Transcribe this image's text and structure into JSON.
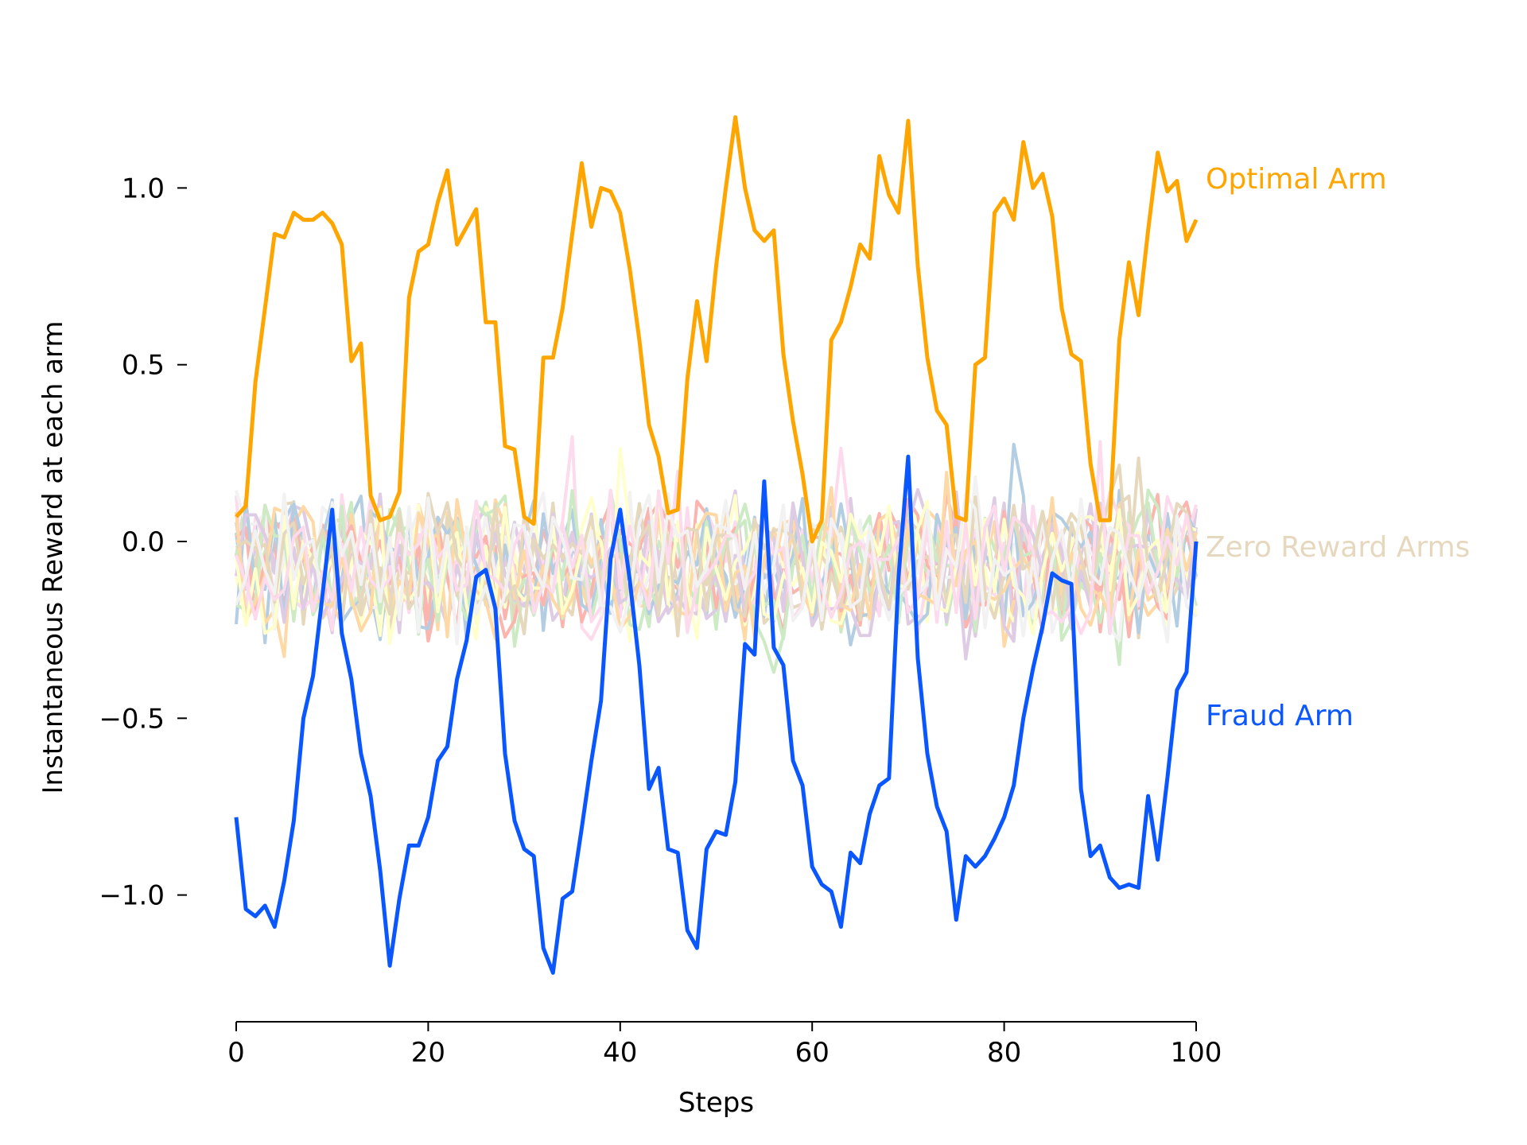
{
  "chart_data": {
    "type": "line",
    "title": "",
    "xlabel": "Steps",
    "ylabel": "Instantaneous Reward at each arm",
    "xlim": [
      0,
      100
    ],
    "ylim": [
      -1.3,
      1.3
    ],
    "x_ticks": [
      0,
      20,
      40,
      60,
      80,
      100
    ],
    "x_tick_labels": [
      "0",
      "20",
      "40",
      "60",
      "80",
      "100"
    ],
    "y_ticks": [
      -1.0,
      -0.5,
      0.0,
      0.5,
      1.0
    ],
    "y_tick_labels": [
      "−1.0",
      "−0.5",
      "0.0",
      "0.5",
      "1.0"
    ],
    "grid": false,
    "legend": "labels placed at the right end of the lines",
    "series_labels": {
      "optimal": "Optimal Arm",
      "zero": "Zero Reward Arms",
      "fraud": "Fraud Arm"
    },
    "colors": {
      "optimal": "#FFA500",
      "fraud": "#0B57FF",
      "zero_label": "#E6D8BE",
      "zero_palette": [
        "#FBB4AE",
        "#B3CDE3",
        "#CCEBC5",
        "#DECBE4",
        "#FED9A6",
        "#FFFFCC",
        "#E5D8BD",
        "#FDDAEC",
        "#F2F2F2"
      ]
    },
    "x": [
      0,
      1,
      2,
      3,
      4,
      5,
      6,
      7,
      8,
      9,
      10,
      11,
      12,
      13,
      14,
      15,
      16,
      17,
      18,
      19,
      20,
      21,
      22,
      23,
      24,
      25,
      26,
      27,
      28,
      29,
      30,
      31,
      32,
      33,
      34,
      35,
      36,
      37,
      38,
      39,
      40,
      41,
      42,
      43,
      44,
      45,
      46,
      47,
      48,
      49,
      50,
      51,
      52,
      53,
      54,
      55,
      56,
      57,
      58,
      59,
      60,
      61,
      62,
      63,
      64,
      65,
      66,
      67,
      68,
      69,
      70,
      71,
      72,
      73,
      74,
      75,
      76,
      77,
      78,
      79,
      80,
      81,
      82,
      83,
      84,
      85,
      86,
      87,
      88,
      89,
      90,
      91,
      92,
      93,
      94,
      95,
      96,
      97,
      98,
      99,
      100
    ],
    "series": [
      {
        "name": "Optimal Arm",
        "role": "optimal",
        "values": [
          0.07,
          0.1,
          0.45,
          0.66,
          0.87,
          0.86,
          0.93,
          0.91,
          0.91,
          0.93,
          0.9,
          0.84,
          0.51,
          0.56,
          0.13,
          0.06,
          0.07,
          0.14,
          0.69,
          0.82,
          0.84,
          0.96,
          1.05,
          0.84,
          0.89,
          0.94,
          0.62,
          0.62,
          0.27,
          0.26,
          0.07,
          0.05,
          0.52,
          0.52,
          0.66,
          0.87,
          1.07,
          0.89,
          1.0,
          0.99,
          0.93,
          0.77,
          0.57,
          0.33,
          0.24,
          0.08,
          0.09,
          0.46,
          0.68,
          0.51,
          0.78,
          1.0,
          1.2,
          1.0,
          0.88,
          0.85,
          0.88,
          0.53,
          0.34,
          0.19,
          0.0,
          0.06,
          0.57,
          0.62,
          0.72,
          0.84,
          0.8,
          1.09,
          0.98,
          0.93,
          1.19,
          0.78,
          0.52,
          0.37,
          0.33,
          0.07,
          0.06,
          0.5,
          0.52,
          0.93,
          0.97,
          0.91,
          1.13,
          1.0,
          1.04,
          0.92,
          0.66,
          0.53,
          0.51,
          0.22,
          0.06,
          0.06,
          0.57,
          0.79,
          0.64,
          0.88,
          1.1,
          0.99,
          1.02,
          0.85,
          0.91
        ]
      },
      {
        "name": "Fraud Arm",
        "role": "fraud",
        "values": [
          -0.78,
          -1.04,
          -1.06,
          -1.03,
          -1.09,
          -0.96,
          -0.79,
          -0.5,
          -0.38,
          -0.15,
          0.09,
          -0.26,
          -0.39,
          -0.6,
          -0.72,
          -0.93,
          -1.2,
          -1.01,
          -0.86,
          -0.86,
          -0.78,
          -0.62,
          -0.58,
          -0.39,
          -0.28,
          -0.1,
          -0.08,
          -0.19,
          -0.6,
          -0.79,
          -0.87,
          -0.89,
          -1.15,
          -1.22,
          -1.01,
          -0.99,
          -0.81,
          -0.62,
          -0.45,
          -0.05,
          0.09,
          -0.11,
          -0.35,
          -0.7,
          -0.64,
          -0.87,
          -0.88,
          -1.1,
          -1.15,
          -0.87,
          -0.82,
          -0.83,
          -0.68,
          -0.29,
          -0.32,
          0.17,
          -0.3,
          -0.35,
          -0.62,
          -0.69,
          -0.92,
          -0.97,
          -0.99,
          -1.09,
          -0.88,
          -0.91,
          -0.77,
          -0.69,
          -0.67,
          -0.1,
          0.24,
          -0.33,
          -0.6,
          -0.75,
          -0.82,
          -1.07,
          -0.89,
          -0.92,
          -0.89,
          -0.84,
          -0.78,
          -0.69,
          -0.5,
          -0.36,
          -0.24,
          -0.09,
          -0.11,
          -0.12,
          -0.7,
          -0.89,
          -0.86,
          -0.95,
          -0.98,
          -0.97,
          -0.98,
          -0.72,
          -0.9,
          -0.67,
          -0.42,
          -0.37,
          0.0
        ]
      }
    ],
    "zero_reward_arms": {
      "count": 18,
      "value_range": [
        -0.37,
        0.31
      ],
      "mean": -0.07
    }
  }
}
